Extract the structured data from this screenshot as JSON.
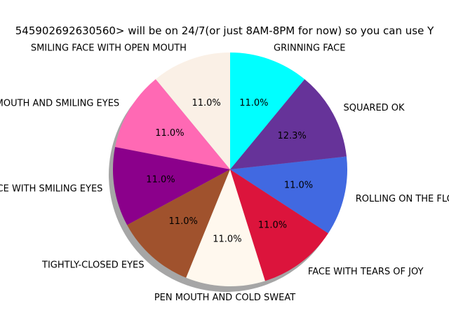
{
  "chart_data": {
    "type": "pie",
    "title": "545902692630560> will be on 24/7(or just 8AM-8PM for now) so you can use Y",
    "shadow": true,
    "start_angle_deg": 90,
    "direction": "counterclockwise",
    "slices": [
      {
        "label": "SMILING FACE WITH OPEN MOUTH",
        "value": 11.0,
        "pct_label": "11.0%",
        "color": "#faf0e6"
      },
      {
        "label": "TH OPEN MOUTH AND SMILING EYES",
        "value": 11.0,
        "pct_label": "11.0%",
        "color": "#ff69b4"
      },
      {
        "label": "ACE WITH SMILING EYES",
        "value": 11.0,
        "pct_label": "11.0%",
        "color": "#8b008b"
      },
      {
        "label": "TIGHTLY-CLOSED EYES",
        "value": 11.0,
        "pct_label": "11.0%",
        "color": "#a0522d"
      },
      {
        "label": "PEN MOUTH AND COLD SWEAT",
        "value": 11.0,
        "pct_label": "11.0%",
        "color": "#fff8ee"
      },
      {
        "label": "FACE WITH TEARS OF JOY",
        "value": 11.0,
        "pct_label": "11.0%",
        "color": "#dc143c"
      },
      {
        "label": "ROLLING ON THE FLOOR LA",
        "value": 11.0,
        "pct_label": "11.0%",
        "color": "#4169e1"
      },
      {
        "label": "SQUARED OK",
        "value": 12.3,
        "pct_label": "12.3%",
        "color": "#663399"
      },
      {
        "label": "GRINNING FACE",
        "value": 11.0,
        "pct_label": "11.0%",
        "color": "#00ffff"
      }
    ]
  }
}
